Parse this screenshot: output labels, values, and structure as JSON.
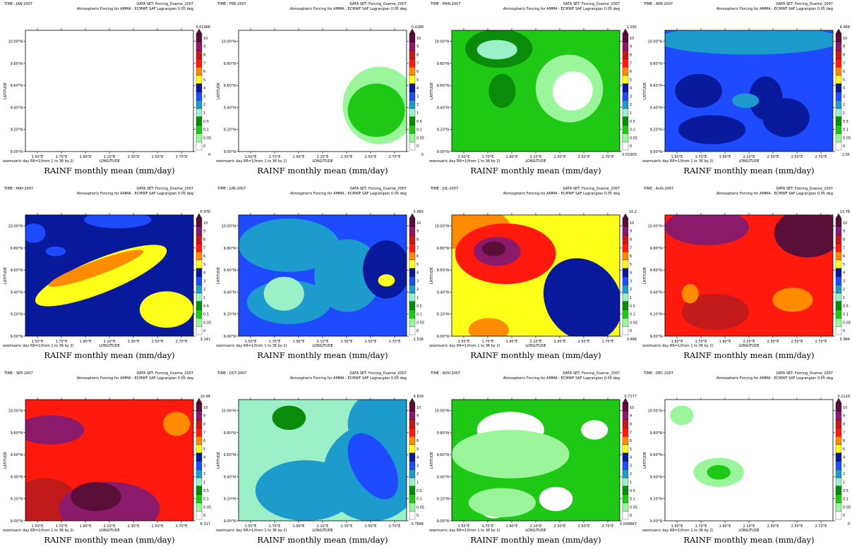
{
  "chart_data": {
    "type": "heatmap",
    "data_set_label": "DATA SET: Forcing_Oueme_2007",
    "subtitle": "Atmospheric Forcing for AMMA - ECMWF SAF Lagrangian 0.05 deg",
    "xlabel": "LONGITUDE",
    "ylabel": "LATITUDE",
    "caption": "RAINF monthly mean (mm/day)",
    "footer": "ooemueric day RR=1(from 1 to 36 by 2)",
    "xlim": [
      1.4,
      2.8
    ],
    "ylim": [
      9.0,
      10.1
    ],
    "xticks": [
      "1.50°E",
      "1.70°E",
      "1.90°E",
      "2.10°E",
      "2.30°E",
      "2.50°E",
      "2.70°E"
    ],
    "yticks": [
      "10.00°N",
      "9.80°N",
      "9.60°N",
      "9.40°N",
      "9.20°N",
      "9.00°N"
    ],
    "colorbar": {
      "levels": [
        "10",
        "9",
        "8",
        "7",
        "6",
        "5",
        "4",
        "3",
        "2",
        "1",
        "0.5",
        "0.1",
        "0.05",
        "0"
      ],
      "colors": [
        "#5a0f38",
        "#8b1a6b",
        "#c21a1a",
        "#ff1a0d",
        "#ff8c00",
        "#ffff19",
        "#08199c",
        "#1e4bff",
        "#1e9bcd",
        "#9bf0c8",
        "#0a8c0a",
        "#1ec814",
        "#9bf59b",
        "#ffffff"
      ]
    },
    "panels": [
      {
        "time": "TIME : JAN-2007",
        "max": "0.01968",
        "min": "0"
      },
      {
        "time": "TIME : FEB-2007",
        "max": "0.4188",
        "min": "0"
      },
      {
        "time": "TIME : MAR-2007",
        "max": "1.293",
        "min": "0.01903"
      },
      {
        "time": "TIME : APR-2007",
        "max": "4.958",
        "min": "2.05"
      },
      {
        "time": "TIME : MAY-2007",
        "max": "6.978",
        "min": "3.141"
      },
      {
        "time": "TIME : JUN-2007",
        "max": "5.483",
        "min": "1.536"
      },
      {
        "time": "TIME : JUL-2007",
        "max": "10.2",
        "min": "3.466"
      },
      {
        "time": "TIME : AUG-2007",
        "max": "13.78",
        "min": "5.984"
      },
      {
        "time": "TIME : SEP-2007",
        "max": "10.94",
        "min": "6.317"
      },
      {
        "time": "TIME : OCT-2007",
        "max": "4.839",
        "min": "0.7896"
      },
      {
        "time": "TIME : NOV-2007",
        "max": "0.7177",
        "min": "0.009867"
      },
      {
        "time": "TIME : DEC-2007",
        "max": "0.2126",
        "min": "0"
      }
    ]
  }
}
